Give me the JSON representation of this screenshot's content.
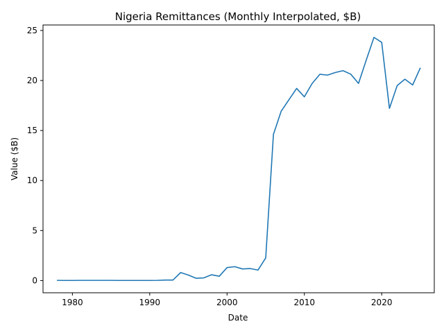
{
  "chart_data": {
    "type": "line",
    "title": "Nigeria Remittances (Monthly Interpolated, $B)",
    "xlabel": "Date",
    "ylabel": "Value ($B)",
    "xlim": [
      1976.2,
      2026.8
    ],
    "ylim": [
      -1.22,
      25.55
    ],
    "xticks": [
      1980,
      1990,
      2000,
      2010,
      2020
    ],
    "yticks": [
      0,
      5,
      10,
      15,
      20,
      25
    ],
    "grid": false,
    "legend": "none",
    "series": [
      {
        "color": "#1f77b4",
        "x": [
          1978,
          1979,
          1980,
          1981,
          1982,
          1983,
          1984,
          1985,
          1986,
          1987,
          1988,
          1989,
          1990,
          1991,
          1992,
          1993,
          1994,
          1995,
          1996,
          1997,
          1998,
          1999,
          2000,
          2001,
          2002,
          2003,
          2004,
          2005,
          2006,
          2007,
          2008,
          2009,
          2010,
          2011,
          2012,
          2013,
          2014,
          2015,
          2016,
          2017,
          2018,
          2019,
          2020,
          2021,
          2022,
          2023,
          2024,
          2025
        ],
        "y": [
          0.02,
          0.01,
          0.01,
          0.02,
          0.02,
          0.02,
          0.02,
          0.02,
          0.01,
          0.01,
          0.01,
          0.01,
          0.01,
          0.02,
          0.05,
          0.05,
          0.8,
          0.55,
          0.23,
          0.27,
          0.58,
          0.43,
          1.3,
          1.39,
          1.16,
          1.2,
          1.05,
          2.26,
          14.62,
          16.93,
          18.07,
          19.21,
          18.37,
          19.7,
          20.62,
          20.54,
          20.8,
          20.98,
          20.63,
          19.71,
          22.04,
          24.31,
          23.81,
          17.21,
          19.49,
          20.13,
          19.55,
          21.27
        ]
      }
    ]
  }
}
